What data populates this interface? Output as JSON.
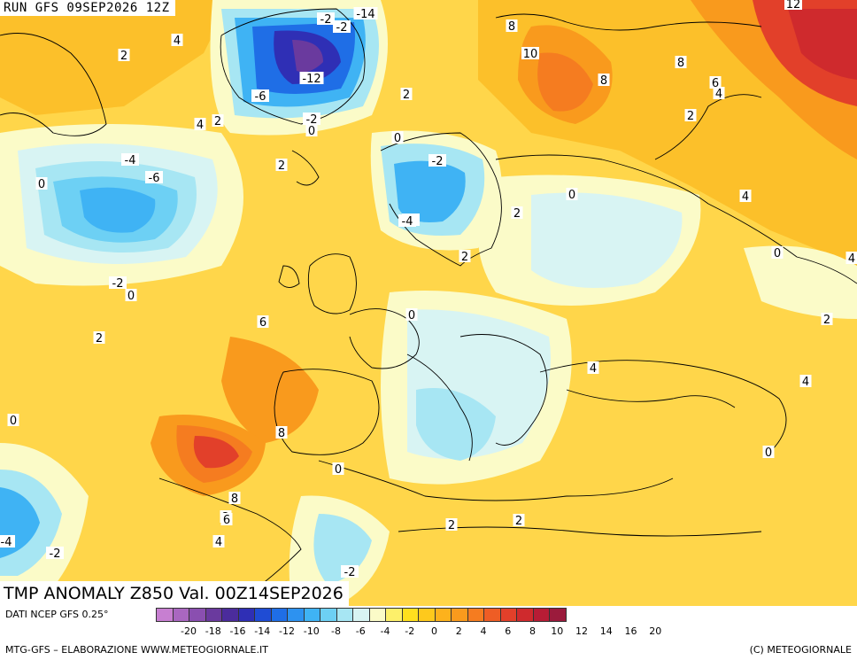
{
  "header": {
    "run": "RUN GFS 09SEP2026 12Z",
    "anomaly": "TMP ANOMALY Z850 Val. 00Z14SEP2026"
  },
  "legend": {
    "source": "DATI NCEP GFS 0.25°",
    "ticks": [
      "-20",
      "-18",
      "-16",
      "-14",
      "-12",
      "-10",
      "-8",
      "-6",
      "-4",
      "-2",
      "0",
      "2",
      "4",
      "6",
      "8",
      "10",
      "12",
      "14",
      "16",
      "20"
    ],
    "colors": [
      "#c77fd1",
      "#a967c0",
      "#8a4fb0",
      "#6a3a9e",
      "#4b2c9c",
      "#2f2fb5",
      "#1f4cd4",
      "#1f6ee6",
      "#2d92f0",
      "#3fb3f4",
      "#6dd0f4",
      "#a7e6f3",
      "#d8f4f3",
      "#fbfbc8",
      "#fdf06a",
      "#ffe01e",
      "#fec91c",
      "#fdb21c",
      "#f99a1d",
      "#f57c20",
      "#ee5d25",
      "#e2402a",
      "#cf2a2d",
      "#b71c35",
      "#9b1b3c"
    ],
    "credit_left": "MTG-GFS – ELABORAZIONE WWW.METEOGIORNALE.IT",
    "credit_right": "(C) METEOGIORNALE"
  },
  "map": {
    "colors": {
      "base": "#ffd64a",
      "warm1": "#fcc02a",
      "warm2": "#f99a1d",
      "warm3": "#f57c20",
      "hot": "#e2402a",
      "hotter": "#cf2a2d",
      "pale": "#fbfbc8",
      "cool0": "#d8f4f3",
      "cool1": "#a7e6f3",
      "cool2": "#6dd0f4",
      "cool3": "#3fb3f4",
      "cool4": "#1f6ee6",
      "cold1": "#2f2fb5",
      "cold2": "#6a3a9e",
      "coast": "#000000"
    },
    "labels": [
      "4",
      "2",
      "-2",
      "-14",
      "-4",
      "-6",
      "-12",
      "-2",
      "4",
      "2",
      "-2",
      "0",
      "2",
      "8",
      "10",
      "8",
      "6",
      "4",
      "12",
      "8",
      "2",
      "0",
      "2",
      "4",
      "-2",
      "-4",
      "-6",
      "0",
      "-2",
      "0",
      "2",
      "6",
      "-4",
      "0",
      "2",
      "0",
      "2",
      "4",
      "0",
      "2",
      "4",
      "4",
      "0",
      "8",
      "8",
      "6",
      "4",
      "2",
      "-4",
      "-2",
      "2",
      "-2",
      "2",
      "0",
      "0"
    ]
  }
}
